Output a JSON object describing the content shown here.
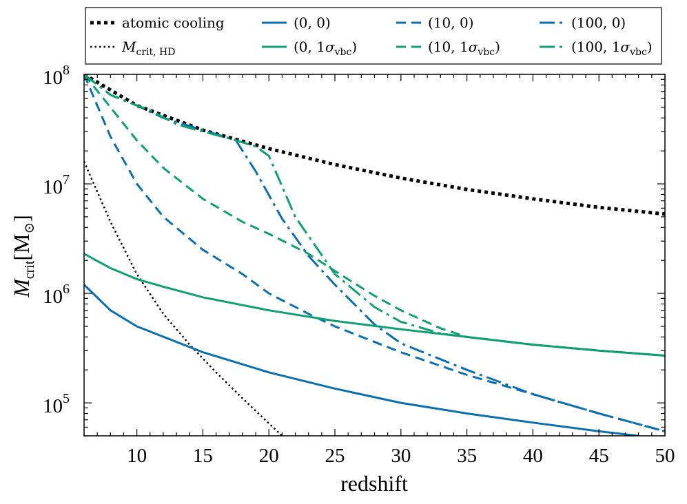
{
  "chart_data": {
    "type": "line",
    "title": "",
    "xlabel": "redshift",
    "ylabel": {
      "symbol": "M",
      "subscript": "crit",
      "unit": "M",
      "unit_subscript": "⊙"
    },
    "yscale": "log",
    "xlim": [
      6,
      50
    ],
    "ylim": [
      50000,
      100000000
    ],
    "x_ticks": [
      10,
      15,
      20,
      25,
      30,
      35,
      40,
      45,
      50
    ],
    "x_tick_labels": [
      "10",
      "15",
      "20",
      "25",
      "30",
      "35",
      "40",
      "45",
      "50"
    ],
    "y_ticks": [
      {
        "value": 100000,
        "base": "10",
        "exp": "5"
      },
      {
        "value": 1000000,
        "base": "10",
        "exp": "6"
      },
      {
        "value": 10000000,
        "base": "10",
        "exp": "7"
      },
      {
        "value": 100000000,
        "base": "10",
        "exp": "8"
      }
    ],
    "legend_position": "top",
    "colors": {
      "blue": "#0a6fb0",
      "green": "#0fa070",
      "black": "#000000"
    },
    "series": [
      {
        "key": "atomic",
        "name": "atomic cooling",
        "color": "#000000",
        "style": "dense-dot",
        "width": 5,
        "x": [
          6,
          10,
          15,
          20,
          25,
          30,
          35,
          40,
          45,
          50
        ],
        "y": [
          100000000,
          52000000,
          31000000,
          21000000,
          15000000,
          11300000,
          8900000,
          7300000,
          6100000,
          5300000
        ]
      },
      {
        "key": "hd",
        "name": "M_crit,HD",
        "name_parts": {
          "symbol": "M",
          "subscript": "crit, HD"
        },
        "color": "#000000",
        "style": "dotted",
        "width": 2.5,
        "x": [
          6,
          8,
          10,
          12,
          14,
          16,
          18,
          20,
          21
        ],
        "y": [
          16000000,
          4500000,
          1500000,
          650000,
          340000,
          190000,
          110000,
          65000,
          50000
        ]
      },
      {
        "key": "b00",
        "name": "(0, 0)",
        "color": "#0a6fb0",
        "style": "solid",
        "width": 3,
        "x": [
          6,
          8,
          10,
          15,
          20,
          25,
          30,
          35,
          40,
          45,
          48
        ],
        "y": [
          1200000,
          700000,
          500000,
          290000,
          190000,
          135000,
          100000,
          80000,
          66000,
          55000,
          50000
        ]
      },
      {
        "key": "b100",
        "name": "(10, 0)",
        "color": "#0a6fb0",
        "style": "dashed",
        "width": 3,
        "x": [
          6,
          8,
          10,
          12,
          15,
          18,
          20,
          23,
          25,
          30,
          35,
          40,
          45,
          50
        ],
        "y": [
          100000000,
          27000000,
          10000000,
          5000000,
          2500000,
          1500000,
          1000000,
          650000,
          500000,
          290000,
          180000,
          120000,
          80000,
          55000
        ]
      },
      {
        "key": "b1000",
        "name": "(100, 0)",
        "color": "#0a6fb0",
        "style": "dashdot",
        "width": 3,
        "x": [
          6,
          8,
          10,
          12,
          15,
          17.5,
          19,
          21,
          23,
          25,
          28,
          30,
          35,
          40,
          45,
          50
        ],
        "y": [
          100000000,
          65000000,
          52000000,
          40000000,
          31000000,
          25000000,
          13000000,
          4800000,
          2200000,
          1200000,
          520000,
          350000,
          200000,
          120000,
          80000,
          55000
        ]
      },
      {
        "key": "g0",
        "name": "(0, 1σvbc)",
        "name_parts": {
          "prefix": "(0, 1",
          "sigma": "σ",
          "sub": "vbc",
          "suffix": ")"
        },
        "color": "#0fa070",
        "style": "solid",
        "width": 3,
        "x": [
          6,
          8,
          10,
          12,
          15,
          20,
          25,
          30,
          35,
          40,
          45,
          50
        ],
        "y": [
          2300000,
          1700000,
          1350000,
          1150000,
          920000,
          700000,
          560000,
          470000,
          400000,
          340000,
          300000,
          270000
        ]
      },
      {
        "key": "g10",
        "name": "(10, 1σvbc)",
        "name_parts": {
          "prefix": "(10, 1",
          "sigma": "σ",
          "sub": "vbc",
          "suffix": ")"
        },
        "color": "#0fa070",
        "style": "dashed",
        "width": 3,
        "x": [
          6,
          8,
          10,
          12,
          15,
          18,
          20,
          23,
          25,
          28,
          30,
          33,
          35,
          40,
          45,
          50
        ],
        "y": [
          100000000,
          50000000,
          25000000,
          14000000,
          7300000,
          4500000,
          3500000,
          2300000,
          1600000,
          950000,
          700000,
          480000,
          400000,
          340000,
          300000,
          270000
        ]
      },
      {
        "key": "g100",
        "name": "(100, 1σvbc)",
        "name_parts": {
          "prefix": "(100, 1",
          "sigma": "σ",
          "sub": "vbc",
          "suffix": ")"
        },
        "color": "#0fa070",
        "style": "dashdot",
        "width": 3,
        "x": [
          6,
          8,
          10,
          11,
          13,
          15,
          17,
          19,
          20,
          22,
          25,
          28,
          30,
          33,
          35,
          40,
          45,
          50
        ],
        "y": [
          100000000,
          65000000,
          52000000,
          47000000,
          35000000,
          30000000,
          26000000,
          22000000,
          18000000,
          5000000,
          1500000,
          750000,
          550000,
          430000,
          400000,
          340000,
          300000,
          270000
        ]
      }
    ],
    "legend_rows": [
      [
        "atomic",
        "b00",
        "b100",
        "b1000"
      ],
      [
        "hd",
        "g0",
        "g10",
        "g100"
      ]
    ]
  }
}
